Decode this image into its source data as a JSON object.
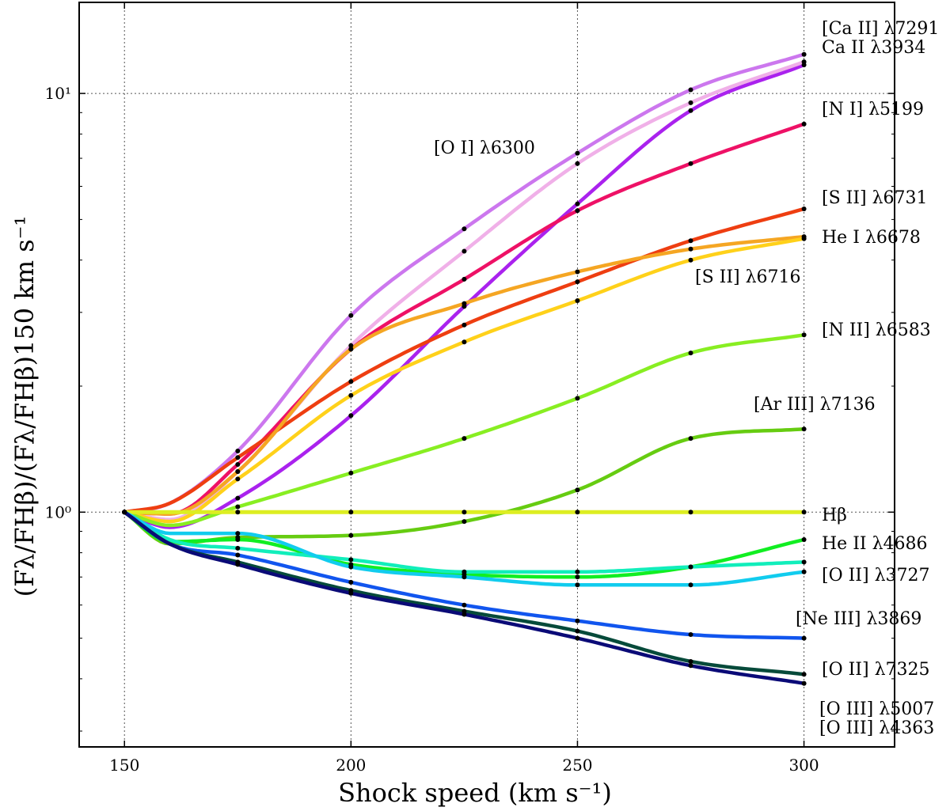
{
  "chart_data": {
    "type": "line",
    "xlabel": "Shock speed (km s⁻¹)",
    "ylabel": "(Fλ/FHβ)/(Fλ/FHβ)150 km s⁻¹",
    "xlim": [
      140,
      320
    ],
    "ylim": [
      0.275,
      16.5
    ],
    "yscale": "log",
    "grid": true,
    "grid_style": "dotted",
    "xticks": [
      150,
      200,
      250,
      300
    ],
    "xtick_labels": [
      "150",
      "200",
      "250",
      "300"
    ],
    "yticks": [
      1,
      10
    ],
    "ytick_labels": [
      "10⁰",
      "10¹"
    ],
    "marker_x": [
      150,
      175,
      200,
      225,
      250,
      275,
      300
    ],
    "series": [
      {
        "name": "[Ca II] λ7291",
        "color": "#cc77ee",
        "x": [
          150,
          160,
          175,
          200,
          225,
          250,
          275,
          300
        ],
        "y": [
          1.0,
          1.05,
          1.4,
          2.95,
          4.75,
          7.2,
          10.2,
          12.4
        ]
      },
      {
        "name": "Ca II λ3934",
        "color": "#aa22ee",
        "x": [
          150,
          160,
          175,
          200,
          225,
          250,
          275,
          300
        ],
        "y": [
          1.0,
          0.92,
          1.08,
          1.7,
          3.1,
          5.45,
          9.1,
          11.7
        ]
      },
      {
        "name": "[O I] λ6300",
        "color": "#f0b0e8",
        "x": [
          150,
          160,
          175,
          200,
          225,
          250,
          275,
          300
        ],
        "y": [
          1.0,
          0.96,
          1.25,
          2.5,
          4.2,
          6.8,
          9.5,
          11.9
        ]
      },
      {
        "name": "[N I] λ5199",
        "color": "#ee1166",
        "x": [
          150,
          160,
          175,
          200,
          225,
          250,
          275,
          300
        ],
        "y": [
          1.0,
          0.99,
          1.3,
          2.45,
          3.6,
          5.25,
          6.8,
          8.45
        ]
      },
      {
        "name": "[S II] λ6731",
        "color": "#ee3e11",
        "x": [
          150,
          160,
          175,
          200,
          225,
          250,
          275,
          300
        ],
        "y": [
          1.0,
          1.05,
          1.35,
          2.05,
          2.8,
          3.55,
          4.45,
          5.3
        ]
      },
      {
        "name": "He I λ6678",
        "color": "#f5a623",
        "x": [
          150,
          160,
          175,
          200,
          225,
          250,
          275,
          300
        ],
        "y": [
          1.0,
          0.99,
          1.25,
          2.45,
          3.15,
          3.75,
          4.25,
          4.55
        ]
      },
      {
        "name": "[S II] λ6716",
        "color": "#ffd11a",
        "x": [
          150,
          160,
          175,
          200,
          225,
          250,
          275,
          300
        ],
        "y": [
          1.0,
          0.95,
          1.2,
          1.9,
          2.55,
          3.2,
          4.0,
          4.5
        ]
      },
      {
        "name": "[N II] λ6583",
        "color": "#88ee22",
        "x": [
          150,
          160,
          175,
          200,
          225,
          250,
          275,
          300
        ],
        "y": [
          1.0,
          0.93,
          1.03,
          1.24,
          1.5,
          1.87,
          2.4,
          2.65
        ]
      },
      {
        "name": "[Ar III] λ7136",
        "color": "#66cc11",
        "x": [
          150,
          160,
          175,
          200,
          225,
          250,
          275,
          300
        ],
        "y": [
          1.0,
          0.84,
          0.87,
          0.88,
          0.95,
          1.13,
          1.5,
          1.58
        ]
      },
      {
        "name": "Hβ",
        "color": "#ddee22",
        "x": [
          150,
          175,
          200,
          225,
          250,
          275,
          300
        ],
        "y": [
          1.0,
          1.0,
          1.0,
          1.0,
          1.0,
          1.0,
          1.0
        ]
      },
      {
        "name": "He II λ4686",
        "color": "#11ee22",
        "x": [
          150,
          160,
          175,
          200,
          225,
          250,
          275,
          300
        ],
        "y": [
          1.0,
          0.85,
          0.86,
          0.75,
          0.71,
          0.7,
          0.74,
          0.86
        ]
      },
      {
        "name": "[O II] λ3727",
        "color": "#11eebb",
        "x": [
          150,
          160,
          175,
          200,
          225,
          250,
          275,
          300
        ],
        "y": [
          1.0,
          0.86,
          0.82,
          0.77,
          0.72,
          0.72,
          0.74,
          0.76
        ]
      },
      {
        "name": "[Ne III] λ3869",
        "color": "#11ccee",
        "x": [
          150,
          160,
          175,
          200,
          225,
          250,
          275,
          300
        ],
        "y": [
          1.0,
          0.89,
          0.89,
          0.74,
          0.7,
          0.67,
          0.67,
          0.72
        ]
      },
      {
        "name": "[O II] λ7325",
        "color": "#1155ee",
        "x": [
          150,
          160,
          175,
          200,
          225,
          250,
          275,
          300
        ],
        "y": [
          1.0,
          0.84,
          0.79,
          0.68,
          0.6,
          0.55,
          0.51,
          0.5
        ]
      },
      {
        "name": "[O III] λ5007",
        "color": "#064a3a",
        "x": [
          150,
          160,
          175,
          200,
          225,
          250,
          275,
          300
        ],
        "y": [
          1.0,
          0.84,
          0.76,
          0.65,
          0.58,
          0.52,
          0.44,
          0.41
        ]
      },
      {
        "name": "[O III] λ4363",
        "color": "#0a0a77",
        "x": [
          150,
          160,
          175,
          200,
          225,
          250,
          275,
          300
        ],
        "y": [
          1.0,
          0.84,
          0.75,
          0.64,
          0.57,
          0.5,
          0.43,
          0.39
        ]
      }
    ],
    "labels": [
      {
        "text": "[Ca II] λ7291",
        "series": 0
      },
      {
        "text": "Ca II λ3934",
        "series": 1
      },
      {
        "text": "[O I] λ6300",
        "series": 2
      },
      {
        "text": "[N I] λ5199",
        "series": 3
      },
      {
        "text": "[S II] λ6731",
        "series": 4
      },
      {
        "text": "He I λ6678",
        "series": 5
      },
      {
        "text": "[S II] λ6716",
        "series": 6
      },
      {
        "text": "[N II] λ6583",
        "series": 7
      },
      {
        "text": "[Ar III] λ7136",
        "series": 8
      },
      {
        "text": "Hβ",
        "series": 9
      },
      {
        "text": "He II λ4686",
        "series": 10
      },
      {
        "text": "[O II] λ3727",
        "series": 11
      },
      {
        "text": "[Ne III] λ3869",
        "series": 12
      },
      {
        "text": "[O II] λ7325",
        "series": 13
      },
      {
        "text": "[O III] λ5007",
        "series": 14
      },
      {
        "text": "[O III] λ4363",
        "series": 15
      }
    ]
  }
}
